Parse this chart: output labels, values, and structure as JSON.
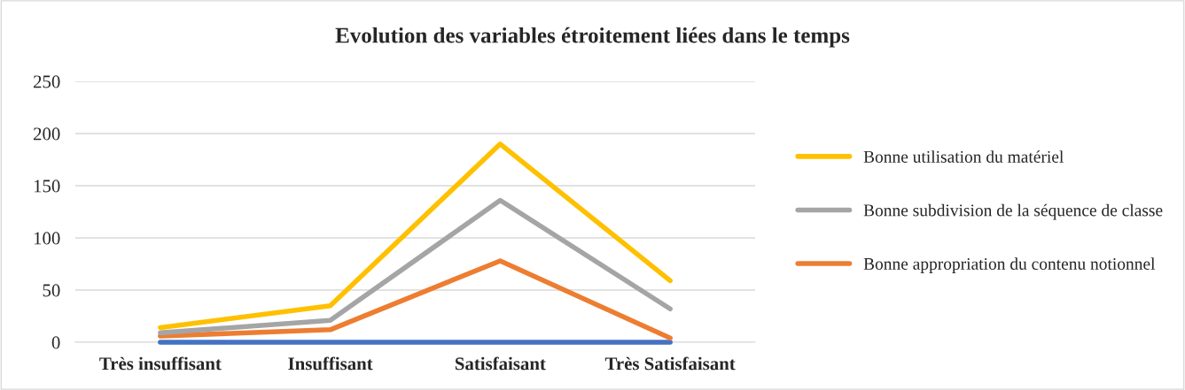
{
  "chart_data": {
    "type": "line",
    "title": "Evolution des variables étroitement liées dans le temps",
    "categories": [
      "Très insuffisant",
      "Insuffisant",
      "Satisfaisant",
      "Très Satisfaisant"
    ],
    "series": [
      {
        "color": "#4472c4",
        "values": [
          0,
          0,
          0,
          0
        ]
      },
      {
        "name": "Bonne appropriation du contenu notionnel",
        "color": "#ed7d31",
        "values": [
          6,
          12,
          78,
          4
        ]
      },
      {
        "name": "Bonne subdivision de la séquence de classe",
        "color": "#a5a5a5",
        "values": [
          9,
          21,
          136,
          32
        ]
      },
      {
        "name": "Bonne utilisation du matériel",
        "color": "#ffc000",
        "values": [
          14,
          35,
          190,
          59
        ]
      }
    ],
    "ylim": [
      0,
      250
    ],
    "yticks": [
      0,
      50,
      100,
      150,
      200,
      250
    ],
    "grid": "y",
    "legend": "right",
    "marker": "none",
    "line_style": "solid"
  }
}
